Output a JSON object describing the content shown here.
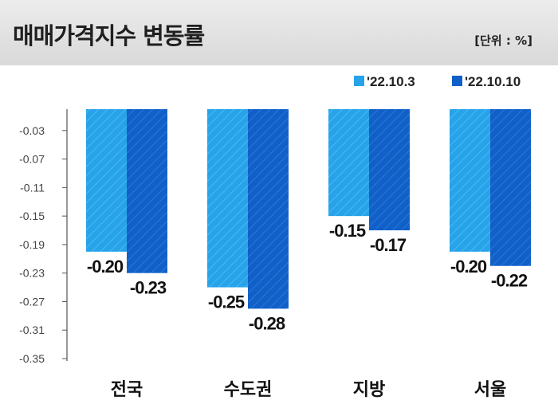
{
  "header": {
    "title": "매매가격지수 변동률",
    "unit": "[단위 : %]"
  },
  "chart_data": {
    "type": "bar",
    "categories": [
      "전국",
      "수도권",
      "지방",
      "서울"
    ],
    "series": [
      {
        "name": "'22.10.3",
        "values": [
          -0.2,
          -0.25,
          -0.15,
          -0.2
        ],
        "color": "#27a3ea"
      },
      {
        "name": "'22.10.10",
        "values": [
          -0.23,
          -0.28,
          -0.17,
          -0.22
        ],
        "color": "#1060c8"
      }
    ],
    "data_labels": [
      [
        "-0.20",
        "-0.25",
        "-0.15",
        "-0.20"
      ],
      [
        "-0.23",
        "-0.28",
        "-0.17",
        "-0.22"
      ]
    ],
    "yticks": [
      "-0.03",
      "-0.07",
      "-0.11",
      "-0.15",
      "-0.19",
      "-0.23",
      "-0.27",
      "-0.31",
      "-0.35"
    ],
    "ylim": [
      -0.35,
      0
    ],
    "legend_position": "top-right",
    "grid": false
  }
}
